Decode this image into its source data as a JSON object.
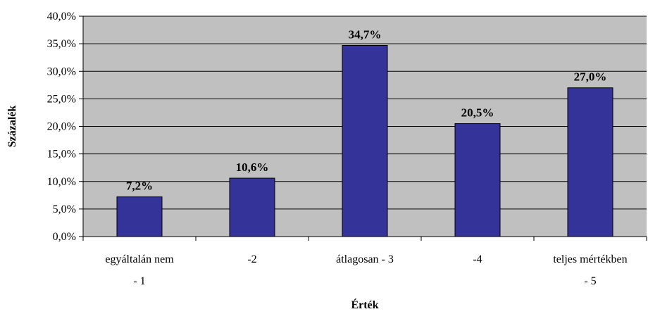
{
  "chart_data": {
    "type": "bar",
    "categories": [
      [
        "egyáltalán nem",
        "- 1"
      ],
      [
        "-2"
      ],
      [
        "átlagosan - 3"
      ],
      [
        "-4"
      ],
      [
        "teljes mértékben",
        "- 5"
      ]
    ],
    "values": [
      7.2,
      10.6,
      34.7,
      20.5,
      27.0
    ],
    "data_labels": [
      "7,2%",
      "10,6%",
      "34,7%",
      "20,5%",
      "27,0%"
    ],
    "xlabel": "Érték",
    "ylabel": "Százalék",
    "ylim": [
      0,
      40
    ],
    "yticks": [
      0,
      5,
      10,
      15,
      20,
      25,
      30,
      35,
      40
    ],
    "ytick_labels": [
      "0,0%",
      "5,0%",
      "10,0%",
      "15,0%",
      "20,0%",
      "25,0%",
      "30,0%",
      "35,0%",
      "40,0%"
    ],
    "grid": true,
    "colors": {
      "plot_background": "#c0c0c0",
      "bar_fill": "#333399",
      "bar_stroke": "#000000",
      "gridline": "#000000"
    }
  }
}
